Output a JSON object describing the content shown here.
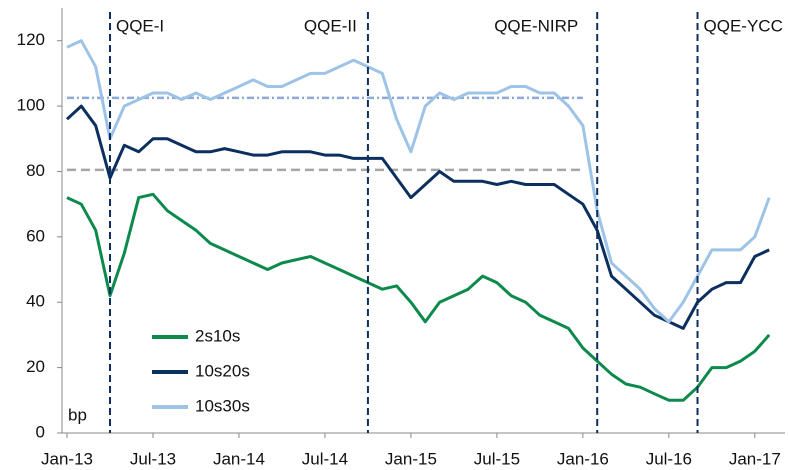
{
  "chart_data": {
    "type": "line",
    "y_unit_label": "bp",
    "x": [
      "Jan-13",
      "Feb-13",
      "Mar-13",
      "Apr-13",
      "May-13",
      "Jun-13",
      "Jul-13",
      "Aug-13",
      "Sep-13",
      "Oct-13",
      "Nov-13",
      "Dec-13",
      "Jan-14",
      "Feb-14",
      "Mar-14",
      "Apr-14",
      "May-14",
      "Jun-14",
      "Jul-14",
      "Aug-14",
      "Sep-14",
      "Oct-14",
      "Nov-14",
      "Dec-14",
      "Jan-15",
      "Feb-15",
      "Mar-15",
      "Apr-15",
      "May-15",
      "Jun-15",
      "Jul-15",
      "Aug-15",
      "Sep-15",
      "Oct-15",
      "Nov-15",
      "Dec-15",
      "Jan-16",
      "Feb-16",
      "Mar-16",
      "Apr-16",
      "May-16",
      "Jun-16",
      "Jul-16",
      "Aug-16",
      "Sep-16",
      "Oct-16",
      "Nov-16",
      "Dec-16",
      "Jan-17",
      "Feb-17"
    ],
    "xticks": [
      "Jan-13",
      "Jul-13",
      "Jan-14",
      "Jul-14",
      "Jan-15",
      "Jul-15",
      "Jan-16",
      "Jul-16",
      "Jan-17"
    ],
    "series": [
      {
        "name": "2s10s",
        "color": "#0b8a4b",
        "values": [
          72,
          70,
          62,
          42,
          55,
          72,
          73,
          68,
          65,
          62,
          58,
          56,
          54,
          52,
          50,
          52,
          53,
          54,
          52,
          50,
          48,
          46,
          44,
          45,
          40,
          34,
          40,
          42,
          44,
          48,
          46,
          42,
          40,
          36,
          34,
          32,
          26,
          22,
          18,
          15,
          14,
          12,
          10,
          10,
          14,
          20,
          20,
          22,
          25,
          30
        ]
      },
      {
        "name": "10s20s",
        "color": "#0b2f5e",
        "values": [
          96,
          100,
          94,
          78,
          88,
          86,
          90,
          90,
          88,
          86,
          86,
          87,
          86,
          85,
          85,
          86,
          86,
          86,
          85,
          85,
          84,
          84,
          84,
          78,
          72,
          76,
          80,
          77,
          77,
          77,
          76,
          77,
          76,
          76,
          76,
          73,
          70,
          62,
          48,
          44,
          40,
          36,
          34,
          32,
          40,
          44,
          46,
          46,
          54,
          56
        ]
      },
      {
        "name": "10s30s",
        "color": "#9dc3e6",
        "values": [
          118,
          120,
          112,
          90,
          100,
          102,
          104,
          104,
          102,
          104,
          102,
          104,
          106,
          108,
          106,
          106,
          108,
          110,
          110,
          112,
          114,
          112,
          110,
          96,
          86,
          100,
          104,
          102,
          104,
          104,
          104,
          106,
          106,
          104,
          104,
          100,
          94,
          68,
          52,
          48,
          44,
          38,
          34,
          40,
          48,
          56,
          56,
          56,
          60,
          72
        ]
      }
    ],
    "events": [
      {
        "label": "QQE-I",
        "x": "Apr-13"
      },
      {
        "label": "QQE-II",
        "x": "Oct-14"
      },
      {
        "label": "QQE-NIRP",
        "x": "Feb-16"
      },
      {
        "label": "QQE-YCC",
        "x": "Sep-16"
      }
    ],
    "reference_lines": [
      {
        "value": 102.5,
        "color": "#8fa9d6",
        "from": "Jan-13",
        "to": "Jan-16"
      },
      {
        "value": 80.5,
        "color": "#a6a6a6",
        "from": "Jan-13",
        "to": "Jan-16"
      }
    ],
    "ylim": [
      0,
      130
    ],
    "yticks": [
      0,
      20,
      40,
      60,
      80,
      100,
      120
    ]
  }
}
